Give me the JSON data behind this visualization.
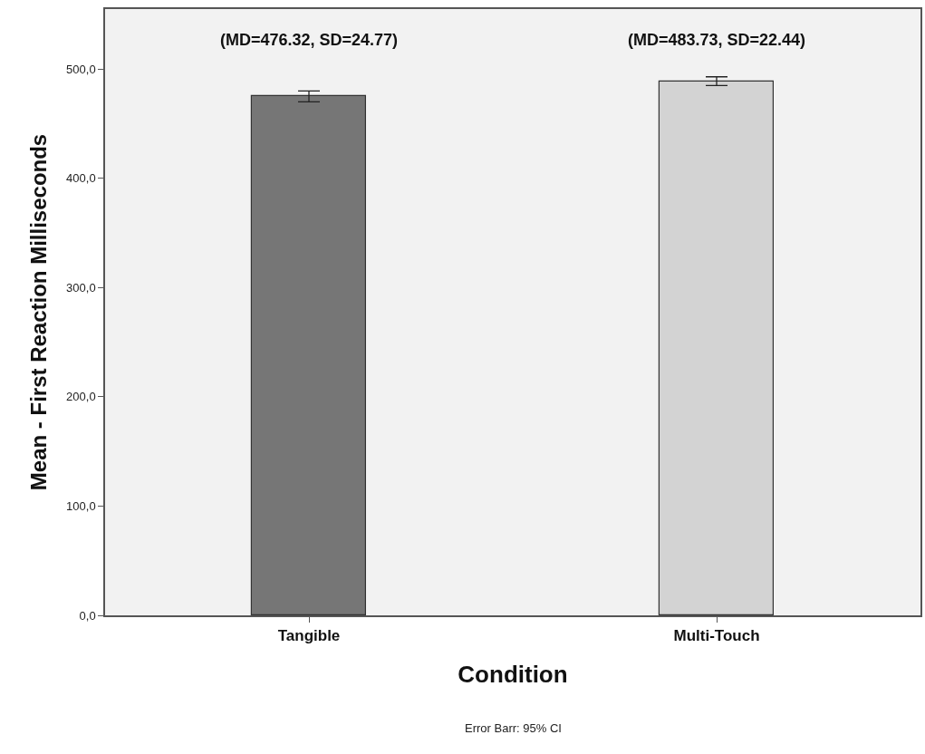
{
  "chart_data": {
    "type": "bar",
    "categories": [
      "Tangible",
      "Multi-Touch"
    ],
    "values": [
      475,
      489
    ],
    "colors": [
      "#767676",
      "#d3d3d3"
    ],
    "errors": [
      5,
      4
    ],
    "xlabel": "Condition",
    "ylabel": "Mean - First Reaction Milliseconds",
    "ylim": [
      0,
      555
    ],
    "yticks": [
      {
        "value": 0,
        "label": "0,0"
      },
      {
        "value": 100,
        "label": "100,0"
      },
      {
        "value": 200,
        "label": "200,0"
      },
      {
        "value": 300,
        "label": "300,0"
      },
      {
        "value": 400,
        "label": "400,0"
      },
      {
        "value": 500,
        "label": "500,0"
      }
    ],
    "grid": false,
    "legend": false,
    "annotations": [
      "(MD=476.32, SD=24.77)",
      "(MD=483.73, SD=22.44)",
      "Error Barr: 95% CI"
    ]
  }
}
